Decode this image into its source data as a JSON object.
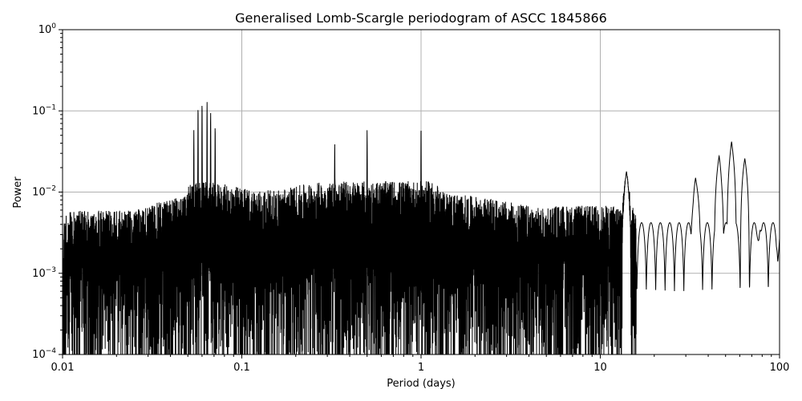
{
  "chart_data": {
    "type": "line",
    "title": "Generalised Lomb-Scargle periodogram of ASCC 1845866",
    "xlabel": "Period (days)",
    "ylabel": "Power",
    "xscale": "log",
    "yscale": "log",
    "xlim": [
      0.01,
      100
    ],
    "ylim": [
      0.0001,
      1
    ],
    "grid": true,
    "line_color": "#000000",
    "grid_color": "#b0b0b0",
    "x_ticks": [
      {
        "value": 0.01,
        "label": "0.01"
      },
      {
        "value": 0.1,
        "label": "0.1"
      },
      {
        "value": 1,
        "label": "1"
      },
      {
        "value": 10,
        "label": "10"
      },
      {
        "value": 100,
        "label": "100"
      }
    ],
    "y_ticks": [
      {
        "value": 0.0001,
        "base": "10",
        "exp": "−4"
      },
      {
        "value": 0.001,
        "base": "10",
        "exp": "−3"
      },
      {
        "value": 0.01,
        "base": "10",
        "exp": "−2"
      },
      {
        "value": 0.1,
        "base": "10",
        "exp": "−1"
      },
      {
        "value": 1,
        "base": "10",
        "exp": "0"
      }
    ],
    "peaks": [
      {
        "period": 0.057,
        "power": 0.13
      },
      {
        "period": 0.06,
        "power": 0.145
      },
      {
        "period": 0.064,
        "power": 0.14
      },
      {
        "period": 0.067,
        "power": 0.11
      },
      {
        "period": 0.054,
        "power": 0.06
      },
      {
        "period": 0.071,
        "power": 0.075
      },
      {
        "period": 0.5,
        "power": 0.065
      },
      {
        "period": 1.0,
        "power": 0.075
      },
      {
        "period": 0.33,
        "power": 0.045
      },
      {
        "period": 14.0,
        "power": 0.018
      },
      {
        "period": 34.0,
        "power": 0.015
      },
      {
        "period": 46.0,
        "power": 0.028
      },
      {
        "period": 54.0,
        "power": 0.042
      },
      {
        "period": 64.0,
        "power": 0.026
      },
      {
        "period": 78.0,
        "power": 0.0034
      },
      {
        "period": 95.0,
        "power": 0.0021
      }
    ]
  }
}
